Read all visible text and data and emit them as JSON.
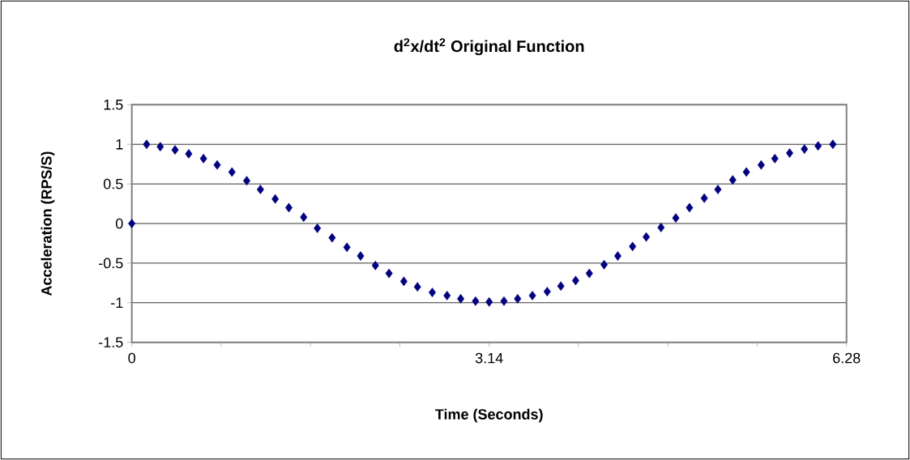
{
  "chart_data": {
    "type": "scatter",
    "title": "d$^{2}$x/dt$^{2}$ Original Function",
    "xlabel": "Time (Seconds)",
    "ylabel": "Acceleration (RPS/S)",
    "x": [
      0,
      0.13,
      0.25,
      0.38,
      0.5,
      0.63,
      0.75,
      0.88,
      1.01,
      1.13,
      1.26,
      1.38,
      1.51,
      1.63,
      1.76,
      1.89,
      2.01,
      2.14,
      2.26,
      2.39,
      2.51,
      2.64,
      2.77,
      2.89,
      3.02,
      3.14,
      3.27,
      3.39,
      3.52,
      3.65,
      3.77,
      3.9,
      4.02,
      4.15,
      4.27,
      4.4,
      4.52,
      4.65,
      4.78,
      4.9,
      5.03,
      5.15,
      5.28,
      5.4,
      5.53,
      5.65,
      5.78,
      5.91,
      6.03,
      6.16
    ],
    "series": [
      {
        "color": "#000080",
        "values": [
          0,
          1.0,
          0.97,
          0.93,
          0.88,
          0.82,
          0.74,
          0.65,
          0.54,
          0.43,
          0.31,
          0.2,
          0.08,
          -0.06,
          -0.18,
          -0.3,
          -0.41,
          -0.53,
          -0.63,
          -0.73,
          -0.8,
          -0.87,
          -0.91,
          -0.95,
          -0.98,
          -0.99,
          -0.98,
          -0.95,
          -0.91,
          -0.86,
          -0.79,
          -0.72,
          -0.63,
          -0.52,
          -0.41,
          -0.29,
          -0.17,
          -0.05,
          0.07,
          0.2,
          0.32,
          0.43,
          0.55,
          0.65,
          0.74,
          0.82,
          0.89,
          0.94,
          0.98,
          1.0
        ]
      }
    ],
    "xlim": [
      0,
      6.28
    ],
    "ylim": [
      -1.5,
      1.5
    ],
    "xticks": [
      0,
      {
        "value": 0.785,
        "label": null
      },
      {
        "value": 1.57,
        "label": null
      },
      {
        "value": 2.355,
        "label": null
      },
      3.14,
      {
        "value": 3.925,
        "label": null
      },
      {
        "value": 4.71,
        "label": null
      },
      {
        "value": 5.495,
        "label": null
      },
      6.28
    ],
    "yticks": [
      -1.5,
      -1,
      -0.5,
      0,
      0.5,
      1,
      1.5
    ],
    "grid": "y",
    "marker": "diamond"
  }
}
